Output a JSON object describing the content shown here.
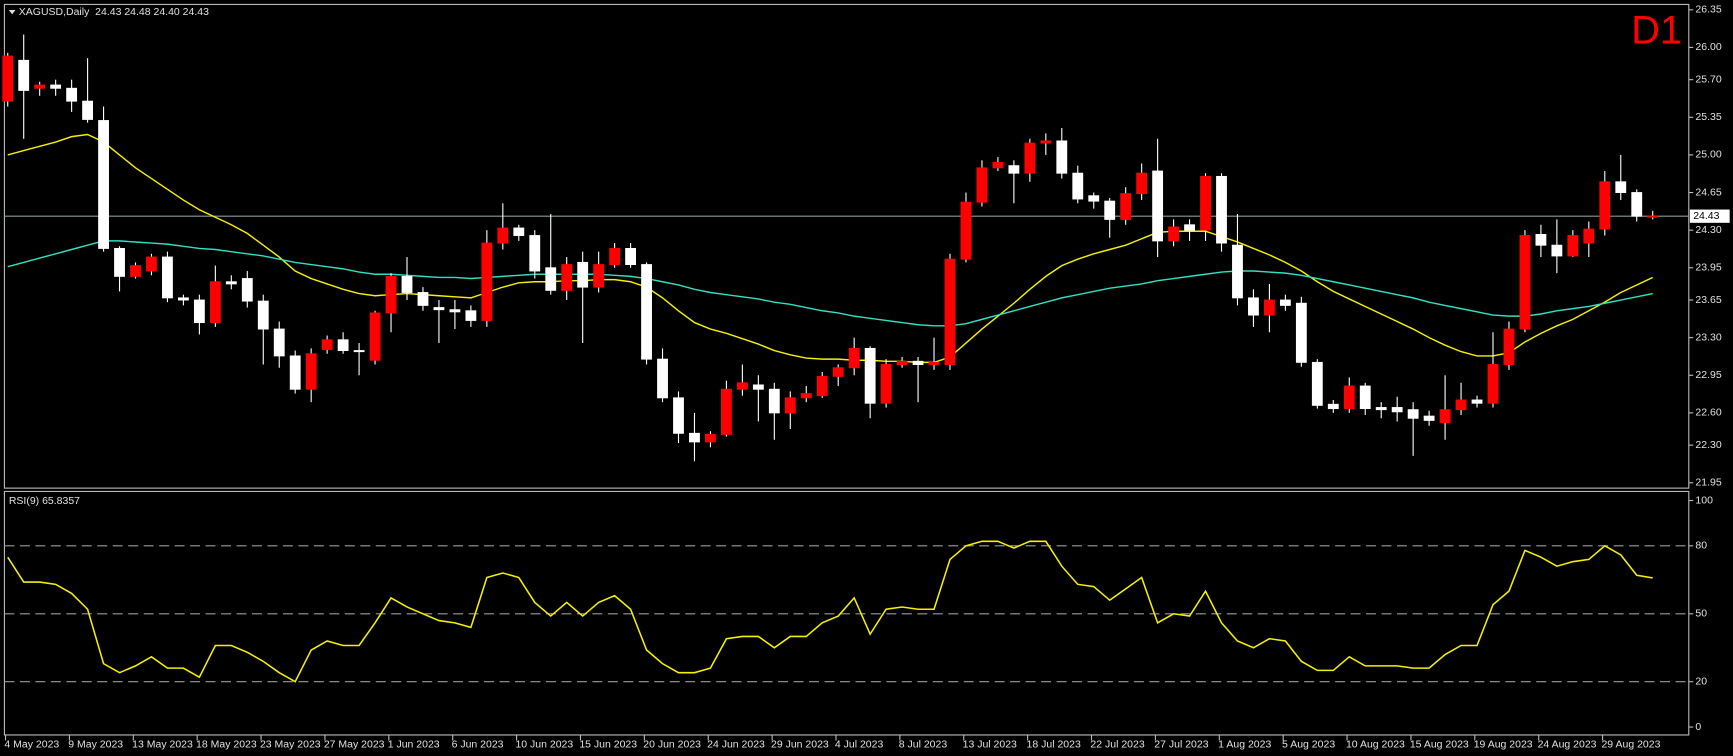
{
  "chart_data": [
    {
      "type": "candlestick",
      "title": "XAGUSD,Daily  24.43 24.48 24.40 24.43",
      "annotation": "D1",
      "categories": [
        "4 May 2023",
        null,
        null,
        null,
        "9 May 2023",
        null,
        null,
        null,
        "13 May 2023",
        null,
        null,
        null,
        "18 May 2023",
        null,
        null,
        null,
        "23 May 2023",
        null,
        null,
        null,
        "27 May 2023",
        null,
        null,
        null,
        "1 Jun 2023",
        null,
        null,
        null,
        "6 Jun 2023",
        null,
        null,
        null,
        "10 Jun 2023",
        null,
        null,
        null,
        "15 Jun 2023",
        null,
        null,
        null,
        "20 Jun 2023",
        null,
        null,
        null,
        "24 Jun 2023",
        null,
        null,
        null,
        "29 Jun 2023",
        null,
        null,
        null,
        "4 Jul 2023",
        null,
        null,
        null,
        "8 Jul 2023",
        null,
        null,
        null,
        "13 Jul 2023",
        null,
        null,
        null,
        "18 Jul 2023",
        null,
        null,
        null,
        "22 Jul 2023",
        null,
        null,
        null,
        "27 Jul 2023",
        null,
        null,
        null,
        "1 Aug 2023",
        null,
        null,
        null,
        "5 Aug 2023",
        null,
        null,
        null,
        "10 Aug 2023",
        null,
        null,
        null,
        "15 Aug 2023",
        null,
        null,
        null,
        "19 Aug 2023",
        null,
        null,
        null,
        "24 Aug 2023",
        null,
        null,
        null,
        "29 Aug 2023",
        null,
        null,
        null
      ],
      "open": [
        25.5,
        25.88,
        25.62,
        25.65,
        25.62,
        25.5,
        25.32,
        24.13,
        23.87,
        23.92,
        24.05,
        23.67,
        23.65,
        23.44,
        23.82,
        23.85,
        23.64,
        23.38,
        23.13,
        22.82,
        23.19,
        23.28,
        23.18,
        23.09,
        23.53,
        23.87,
        23.72,
        23.58,
        23.56,
        23.55,
        23.46,
        24.18,
        24.32,
        24.25,
        23.95,
        23.74,
        24.0,
        23.77,
        23.98,
        24.13,
        23.98,
        23.1,
        22.74,
        22.41,
        22.33,
        22.4,
        22.82,
        22.86,
        22.82,
        22.6,
        22.74,
        22.76,
        22.94,
        23.02,
        23.2,
        22.69,
        23.05,
        23.08,
        23.05,
        23.05,
        24.03,
        24.56,
        24.88,
        24.9,
        24.83,
        25.11,
        25.13,
        24.83,
        24.62,
        24.57,
        24.4,
        24.64,
        24.85,
        24.2,
        24.35,
        24.3,
        24.8,
        24.16,
        23.67,
        23.51,
        23.65,
        23.62,
        23.07,
        22.68,
        22.64,
        22.85,
        22.65,
        22.65,
        22.63,
        22.57,
        22.51,
        22.63,
        22.72,
        22.69,
        23.05,
        23.38,
        24.26,
        24.16,
        24.06,
        24.18,
        24.31,
        24.75,
        24.65,
        24.43
      ],
      "high": [
        25.95,
        26.12,
        25.68,
        25.7,
        25.7,
        25.9,
        25.45,
        24.15,
        24.0,
        24.08,
        24.1,
        23.7,
        23.7,
        23.97,
        23.88,
        23.92,
        23.7,
        23.45,
        23.18,
        23.2,
        23.32,
        23.35,
        23.25,
        23.55,
        23.9,
        24.05,
        23.77,
        23.65,
        23.65,
        23.6,
        24.3,
        24.55,
        24.35,
        24.3,
        24.45,
        24.05,
        24.1,
        24.1,
        24.18,
        24.18,
        24.0,
        23.2,
        22.8,
        22.6,
        22.43,
        22.9,
        23.05,
        22.95,
        22.88,
        22.8,
        22.85,
        22.98,
        23.05,
        23.3,
        23.22,
        23.1,
        23.12,
        23.12,
        23.3,
        24.08,
        24.65,
        24.95,
        24.98,
        24.95,
        25.15,
        25.2,
        25.25,
        24.9,
        24.65,
        24.6,
        24.7,
        24.92,
        25.15,
        24.4,
        24.4,
        24.83,
        24.83,
        24.45,
        23.75,
        23.8,
        23.7,
        23.68,
        23.1,
        22.72,
        22.93,
        22.88,
        22.7,
        22.75,
        22.7,
        22.62,
        22.95,
        22.88,
        22.76,
        23.35,
        23.45,
        24.3,
        24.35,
        24.4,
        24.3,
        24.38,
        24.85,
        25.0,
        24.68,
        24.48
      ],
      "low": [
        25.45,
        25.15,
        25.55,
        25.55,
        25.4,
        25.3,
        24.1,
        23.73,
        23.85,
        23.88,
        23.63,
        23.6,
        23.33,
        23.4,
        23.75,
        23.58,
        23.05,
        23.02,
        22.78,
        22.7,
        23.15,
        23.15,
        22.95,
        23.05,
        23.35,
        23.65,
        23.55,
        23.25,
        23.38,
        23.4,
        23.4,
        24.12,
        24.2,
        23.85,
        23.7,
        23.65,
        23.25,
        23.72,
        23.95,
        23.95,
        23.05,
        22.7,
        22.32,
        22.15,
        22.28,
        22.38,
        22.76,
        22.52,
        22.35,
        22.45,
        22.7,
        22.74,
        22.85,
        22.95,
        22.55,
        22.65,
        23.02,
        22.7,
        23.0,
        23.0,
        24.0,
        24.52,
        24.85,
        24.55,
        24.75,
        25.0,
        24.78,
        24.55,
        24.5,
        24.23,
        24.35,
        24.58,
        24.05,
        24.15,
        24.2,
        24.2,
        24.1,
        23.6,
        23.4,
        23.35,
        23.55,
        23.03,
        22.64,
        22.6,
        22.6,
        22.58,
        22.55,
        22.52,
        22.2,
        22.48,
        22.35,
        22.58,
        22.65,
        22.65,
        23.0,
        23.35,
        24.05,
        23.9,
        24.05,
        24.05,
        24.25,
        24.58,
        24.38,
        24.4
      ],
      "close": [
        25.92,
        25.6,
        25.65,
        25.62,
        25.5,
        25.33,
        24.13,
        23.87,
        23.97,
        24.05,
        23.67,
        23.65,
        23.44,
        23.82,
        23.8,
        23.64,
        23.38,
        23.13,
        22.82,
        23.15,
        23.28,
        23.18,
        23.17,
        23.53,
        23.87,
        23.72,
        23.6,
        23.56,
        23.54,
        23.46,
        24.18,
        24.32,
        24.25,
        23.92,
        23.74,
        23.98,
        23.77,
        23.98,
        24.13,
        23.98,
        23.1,
        22.74,
        22.41,
        22.33,
        22.4,
        22.82,
        22.88,
        22.82,
        22.6,
        22.74,
        22.78,
        22.94,
        23.02,
        23.2,
        22.69,
        23.05,
        23.08,
        23.05,
        23.07,
        24.03,
        24.56,
        24.88,
        24.93,
        24.83,
        25.11,
        25.13,
        24.83,
        24.59,
        24.57,
        24.4,
        24.64,
        24.83,
        24.2,
        24.33,
        24.3,
        24.8,
        24.18,
        23.67,
        23.51,
        23.65,
        23.6,
        23.07,
        22.67,
        22.64,
        22.85,
        22.64,
        22.63,
        22.61,
        22.55,
        22.53,
        22.63,
        22.72,
        22.69,
        23.05,
        23.38,
        24.25,
        24.16,
        24.06,
        24.25,
        24.31,
        24.75,
        24.65,
        24.43,
        24.43
      ],
      "up_color": "#ff0000",
      "down_color": "#ffffff",
      "moving_averages": [
        {
          "color": "#f5f000",
          "values": [
            25.0,
            25.04,
            25.08,
            25.12,
            25.17,
            25.19,
            25.12,
            25.0,
            24.88,
            24.78,
            24.68,
            24.58,
            24.49,
            24.42,
            24.35,
            24.27,
            24.16,
            24.05,
            23.92,
            23.85,
            23.8,
            23.75,
            23.71,
            23.69,
            23.7,
            23.71,
            23.7,
            23.69,
            23.68,
            23.67,
            23.72,
            23.77,
            23.81,
            23.82,
            23.82,
            23.83,
            23.83,
            23.84,
            23.84,
            23.82,
            23.77,
            23.67,
            23.55,
            23.44,
            23.38,
            23.34,
            23.29,
            23.24,
            23.18,
            23.14,
            23.11,
            23.1,
            23.1,
            23.09,
            23.09,
            23.08,
            23.08,
            23.07,
            23.07,
            23.12,
            23.25,
            23.38,
            23.5,
            23.62,
            23.75,
            23.87,
            23.97,
            24.03,
            24.08,
            24.12,
            24.16,
            24.22,
            24.28,
            24.29,
            24.29,
            24.29,
            24.24,
            24.19,
            24.13,
            24.07,
            24.0,
            23.92,
            23.82,
            23.73,
            23.66,
            23.59,
            23.52,
            23.45,
            23.38,
            23.3,
            23.23,
            23.17,
            23.13,
            23.13,
            23.16,
            23.26,
            23.34,
            23.41,
            23.47,
            23.55,
            23.63,
            23.72,
            23.79,
            23.86
          ]
        },
        {
          "color": "#30e0c0",
          "values": [
            23.96,
            24.0,
            24.04,
            24.08,
            24.12,
            24.16,
            24.2,
            24.2,
            24.19,
            24.18,
            24.17,
            24.15,
            24.13,
            24.12,
            24.1,
            24.08,
            24.06,
            24.03,
            24.0,
            23.98,
            23.96,
            23.94,
            23.91,
            23.89,
            23.89,
            23.88,
            23.87,
            23.86,
            23.86,
            23.85,
            23.86,
            23.87,
            23.88,
            23.89,
            23.89,
            23.89,
            23.89,
            23.89,
            23.88,
            23.87,
            23.85,
            23.82,
            23.79,
            23.75,
            23.72,
            23.7,
            23.68,
            23.66,
            23.63,
            23.61,
            23.58,
            23.55,
            23.53,
            23.5,
            23.48,
            23.46,
            23.44,
            23.42,
            23.41,
            23.41,
            23.43,
            23.47,
            23.51,
            23.55,
            23.59,
            23.63,
            23.67,
            23.7,
            23.73,
            23.76,
            23.78,
            23.8,
            23.83,
            23.85,
            23.87,
            23.89,
            23.91,
            23.92,
            23.92,
            23.91,
            23.9,
            23.88,
            23.85,
            23.82,
            23.79,
            23.76,
            23.73,
            23.7,
            23.67,
            23.63,
            23.6,
            23.57,
            23.54,
            23.51,
            23.5,
            23.5,
            23.52,
            23.55,
            23.57,
            23.59,
            23.62,
            23.65,
            23.68,
            23.71
          ]
        }
      ],
      "price_line": 24.43,
      "ylim": [
        21.9,
        26.4
      ],
      "yticks": [
        26.35,
        {
          "value": 26,
          "label": "26.00"
        },
        {
          "value": 25.7,
          "label": "25.70"
        },
        25.35,
        {
          "value": 25,
          "label": "25.00"
        },
        24.65,
        {
          "value": 24.3,
          "label": "24.30"
        },
        23.95,
        23.65,
        {
          "value": 23.3,
          "label": "23.30"
        },
        22.95,
        {
          "value": 22.6,
          "label": "22.60"
        },
        {
          "value": 22.3,
          "label": "22.30"
        },
        21.95
      ]
    },
    {
      "type": "line",
      "title": "RSI(9) 65.8357",
      "color": "#f5f000",
      "values": [
        75,
        64,
        64,
        63,
        59,
        52,
        28,
        24,
        27,
        31,
        26,
        26,
        22,
        36,
        36,
        33,
        29,
        24,
        20,
        34,
        38,
        36,
        36,
        46,
        57,
        53,
        50,
        47,
        46,
        44,
        66,
        68,
        66,
        55,
        49,
        55,
        49,
        55,
        58,
        52,
        34,
        28,
        24,
        24,
        26,
        39,
        40,
        40,
        35,
        40,
        40,
        46,
        49,
        57,
        41,
        52,
        53,
        52,
        52,
        74,
        80,
        82,
        82,
        79,
        82,
        82,
        71,
        63,
        62,
        56,
        61,
        66,
        46,
        50,
        49,
        60,
        46,
        38,
        35,
        39,
        38,
        29,
        25,
        25,
        31,
        27,
        27,
        27,
        26,
        26,
        32,
        36,
        36,
        54,
        60,
        78,
        75,
        71,
        73,
        74,
        80,
        76,
        67,
        65.8357
      ],
      "ylim": [
        -3.5,
        104
      ],
      "yticks": [
        100,
        80,
        50,
        20,
        0
      ],
      "levels": [
        80,
        50,
        20
      ]
    }
  ]
}
